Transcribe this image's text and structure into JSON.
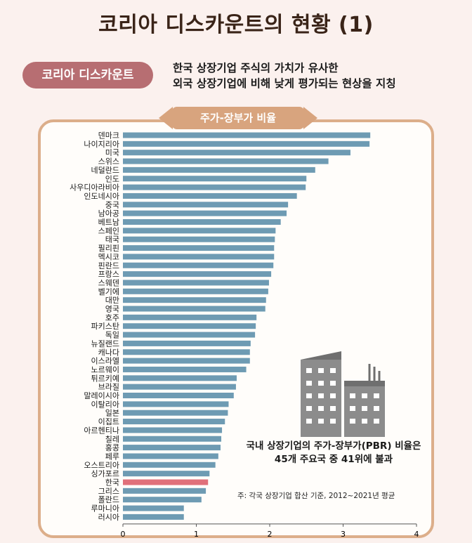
{
  "page": {
    "title": "코리아 디스카운트의 현황 (1)",
    "pill_label": "코리아 디스카운트",
    "definition_line1": "한국 상장기업 주식의 가치가 유사한",
    "definition_line2": "외국 상장기업에 비해 낮게 평가되는 현상을 지칭",
    "chart_tab": "주가-장부가 비율",
    "note_line1": "국내 상장기업의 주가-장부가(PBR) 비율은",
    "note_line2": "45개 주요국 중 41위에 불과",
    "source": "주: 각국 상장기업 합산 기준, 2012~2021년 평균"
  },
  "colors": {
    "bar": "#6e9bb3",
    "highlight": "#e0707a",
    "pill": "#b76e72",
    "frame": "#dcae8a",
    "building": "#8c8c8c",
    "building_dark": "#6f6f6f"
  },
  "chart_data": {
    "type": "bar",
    "orientation": "horizontal",
    "title": "주가-장부가 비율",
    "xlim": [
      0,
      4
    ],
    "xticks": [
      0,
      1,
      2,
      3,
      4
    ],
    "highlight": "한국",
    "categories": [
      "덴마크",
      "나이지리아",
      "미국",
      "스위스",
      "네덜란드",
      "인도",
      "사우디아라비아",
      "인도네시아",
      "중국",
      "남아공",
      "베트남",
      "스페인",
      "태국",
      "필리핀",
      "멕시코",
      "핀란드",
      "프랑스",
      "스웨덴",
      "벨기에",
      "대만",
      "영국",
      "호주",
      "파키스탄",
      "독일",
      "뉴질랜드",
      "캐나다",
      "이스라엘",
      "노르웨이",
      "튀르키예",
      "브라질",
      "말레이시아",
      "이탈리아",
      "일본",
      "이집트",
      "아르헨티나",
      "칠레",
      "홍콩",
      "페루",
      "오스트리아",
      "싱가포르",
      "한국",
      "그리스",
      "폴란드",
      "루마니아",
      "러시아"
    ],
    "values": [
      3.37,
      3.36,
      3.1,
      2.8,
      2.62,
      2.5,
      2.49,
      2.37,
      2.25,
      2.23,
      2.15,
      2.08,
      2.07,
      2.06,
      2.06,
      2.05,
      2.02,
      1.99,
      1.98,
      1.95,
      1.94,
      1.82,
      1.81,
      1.8,
      1.74,
      1.73,
      1.73,
      1.68,
      1.55,
      1.54,
      1.51,
      1.44,
      1.43,
      1.39,
      1.35,
      1.34,
      1.33,
      1.3,
      1.26,
      1.18,
      1.16,
      1.13,
      1.07,
      0.83,
      0.83
    ]
  }
}
